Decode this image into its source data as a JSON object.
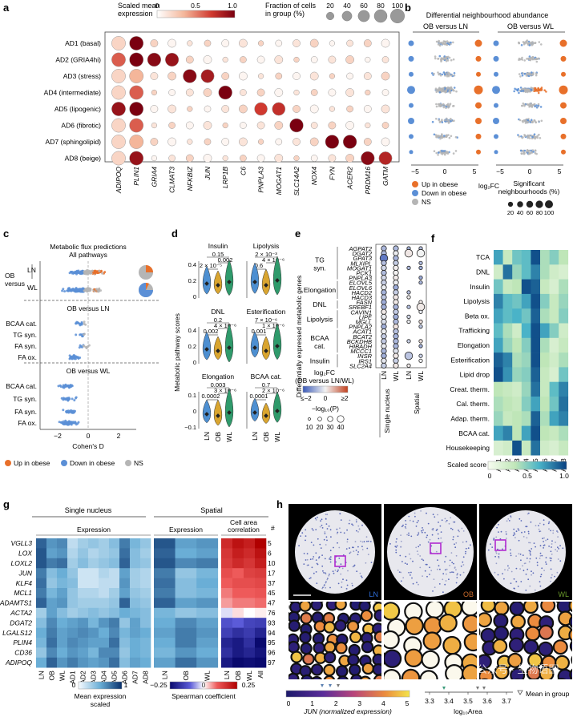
{
  "panel_a": {
    "letter": "a",
    "colorbar_title_1": "Scaled mean",
    "colorbar_title_2": "expression",
    "colorbar_ticks": [
      "0",
      "0.5",
      "1.0"
    ],
    "size_title_1": "Fraction of cells",
    "size_title_2": "in group (%)",
    "size_ticks": [
      "20",
      "40",
      "60",
      "80",
      "100"
    ],
    "colors": {
      "low": "#ffffff",
      "high": "#7a0010"
    }
  },
  "panel_b": {
    "letter": "b",
    "title": "Differential neighbourhood abundance",
    "left_title": "OB versus LN",
    "right_title": "OB versus WL",
    "ticks_left": [
      "−5",
      "0",
      "5"
    ],
    "ticks_right": [
      "−5",
      "0",
      "5"
    ],
    "xlabel": "log₂FC",
    "legend_up": "Up in obese",
    "legend_down": "Down in obese",
    "legend_ns": "NS",
    "size_title_1": "Significant",
    "size_title_2": "neighbourhoods (%)",
    "size_ticks": [
      "20",
      "40",
      "60",
      "80",
      "100"
    ],
    "colors": {
      "up": "#e8702a",
      "down": "#5b8fd6",
      "ns": "#b5b5b5"
    }
  },
  "panel_c": {
    "letter": "c",
    "title_1": "Metabolic flux predictions",
    "title_2": "All pathways",
    "group_top_1": "OB",
    "group_top_2": "versus",
    "row_ln": "LN",
    "row_wl": "WL",
    "section_ln": "OB versus LN",
    "section_wl": "OB versus WL",
    "rows": [
      "BCAA cat.",
      "TG syn.",
      "FA syn.",
      "FA ox."
    ],
    "ticks": [
      "−2",
      "0",
      "2"
    ],
    "xlabel": "Cohen's D",
    "legend_up": "Up in obese",
    "legend_down": "Down in obese",
    "legend_ns": "NS"
  },
  "panel_d": {
    "letter": "d",
    "ylabel": "Metabolic pathway scores",
    "groups": [
      "LN",
      "OB",
      "WL"
    ],
    "colors": {
      "LN": "#4d8fd1",
      "OB": "#d9a530",
      "WL": "#2f9a6b"
    },
    "yticks_1": [
      "0.4",
      "0.2",
      "0"
    ],
    "yticks_2": [
      "0.4",
      "0.2",
      "0"
    ],
    "yticks_3": [
      "0.1",
      "0",
      "−0.1"
    ],
    "violins": [
      {
        "title": "Insulin",
        "pvals": [
          "0.15",
          "2 × 10⁻⁵",
          "0.002"
        ]
      },
      {
        "title": "Lipolysis",
        "pvals": [
          "2 × 10⁻³",
          "0.6",
          "4 × 10⁻⁶"
        ]
      },
      {
        "title": "DNL",
        "pvals": [
          "0.2",
          "0.002",
          "4 × 10⁻⁶"
        ]
      },
      {
        "title": "Esterification",
        "pvals": [
          "7 × 10⁻⁶",
          "0.001",
          "1 × 10⁻⁶"
        ]
      },
      {
        "title": "Elongation",
        "pvals": [
          "0.003",
          "0.0002",
          "3 × 10⁻⁶"
        ]
      },
      {
        "title": "BCAA cat.",
        "pvals": [
          "0.7",
          "0.0001",
          "2 × 10⁻⁶"
        ]
      }
    ]
  },
  "panel_e": {
    "letter": "e",
    "ylabel": "Differentially expressed metabolic genes",
    "groups": [
      "TG syn.",
      "Elongation",
      "DNL",
      "Lipolysis",
      "BCAA cat.",
      "Insulin"
    ],
    "genes": [
      "AGPAT2",
      "DGAT2",
      "GPAT3",
      "MLXIPL",
      "MOGAT1",
      "PCK1",
      "PNPLA3",
      "ELOVL5",
      "ELOVL6",
      "HACD2",
      "HACD3",
      "FASN",
      "SREBF1",
      "CAVIN1",
      "LIPE",
      "MGLL",
      "PNPLA2",
      "ACAT1",
      "BCAT2",
      "BCKDHB",
      "HIBADH",
      "MCCC1",
      "INSR",
      "IRS1",
      "SLC2A4"
    ],
    "cols": [
      "LN",
      "WL",
      "LN",
      "WL"
    ],
    "col_group_1": "Single nucleus",
    "col_group_2": "Spatial",
    "legend_title_1": "log₂FC",
    "legend_title_2": "(OB versus LN/WL)",
    "legend_ticks": [
      "≤−2",
      "0",
      "≥2"
    ],
    "size_title": "−log₁₀(P)",
    "size_ticks": [
      "10",
      "20",
      "30",
      "40"
    ]
  },
  "panel_f": {
    "letter": "f",
    "rows": [
      "TCA",
      "DNL",
      "Insulin",
      "Lipolysis",
      "Beta ox.",
      "Trafficking",
      "Elongation",
      "Esterification",
      "Lipid drop",
      "Creat. therm.",
      "Cal. therm.",
      "Adap. therm.",
      "BCAA cat.",
      "Housekeeping"
    ],
    "cols": [
      "AD1",
      "AD2",
      "AD3",
      "AD4",
      "AD5",
      "AD6",
      "AD7",
      "AD8"
    ],
    "colorbar_title": "Scaled score",
    "colorbar_ticks": [
      "0",
      "0.5",
      "1.0"
    ],
    "values": [
      [
        0.7,
        0.3,
        0.55,
        0.6,
        0.95,
        0.4,
        0.5,
        0.35
      ],
      [
        0.25,
        0.85,
        0.45,
        0.6,
        0.8,
        0.4,
        0.25,
        0.2
      ],
      [
        0.55,
        0.3,
        0.35,
        0.95,
        0.9,
        0.3,
        0.2,
        0.4
      ],
      [
        0.8,
        0.6,
        0.55,
        0.7,
        0.95,
        0.5,
        0.3,
        0.45
      ],
      [
        0.7,
        0.6,
        0.65,
        0.55,
        0.9,
        0.4,
        0.3,
        0.5
      ],
      [
        0.6,
        0.4,
        0.25,
        0.65,
        0.95,
        0.7,
        0.5,
        0.25
      ],
      [
        0.7,
        0.45,
        0.35,
        0.5,
        0.95,
        0.4,
        0.2,
        0.3
      ],
      [
        0.9,
        0.8,
        0.4,
        0.45,
        0.95,
        0.35,
        0.25,
        0.4
      ],
      [
        0.95,
        0.75,
        0.45,
        0.5,
        0.9,
        0.3,
        0.2,
        0.55
      ],
      [
        0.35,
        0.3,
        0.25,
        0.45,
        0.85,
        0.3,
        0.6,
        0.8
      ],
      [
        0.4,
        0.35,
        0.3,
        0.5,
        0.7,
        0.35,
        0.55,
        0.85
      ],
      [
        0.45,
        0.3,
        0.35,
        0.4,
        0.9,
        0.4,
        0.7,
        0.8
      ],
      [
        0.7,
        0.8,
        0.35,
        0.7,
        0.95,
        0.35,
        0.3,
        0.4
      ],
      [
        0.2,
        0.25,
        0.95,
        0.3,
        0.85,
        0.25,
        0.2,
        0.3
      ]
    ]
  },
  "panel_g": {
    "letter": "g",
    "group_single": "Single nucleus",
    "group_spatial": "Spatial",
    "sub_expression": "Expression",
    "sub_expression_2": "Expression",
    "sub_corr_1": "Cell area",
    "sub_corr_2": "correlation",
    "hash_label": "#",
    "genes": [
      "VGLL3",
      "LOX",
      "LOXL2",
      "JUN",
      "KLF4",
      "MCL1",
      "ADAMTS1",
      "ACTA2",
      "DGAT2",
      "LGALS12",
      "PLIN4",
      "CD36",
      "ADIPOQ"
    ],
    "counts": [
      "5",
      "6",
      "10",
      "17",
      "37",
      "45",
      "47",
      "76",
      "93",
      "94",
      "95",
      "96",
      "97"
    ],
    "cols_single": [
      "LN",
      "OB",
      "WL",
      "AD1",
      "AD2",
      "AD3",
      "AD4",
      "AD5",
      "AD6",
      "AD7",
      "AD8"
    ],
    "cols_spatial": [
      "LN",
      "OB",
      "WL",
      "All"
    ],
    "legend_ticks_1": [
      "0",
      "1"
    ],
    "legend_title_1a": "Mean expression",
    "legend_title_1b": "scaled",
    "legend_ticks_2": [
      "−0.25",
      "0",
      "0.25"
    ],
    "legend_title_2": "Spearman coefficient",
    "single_values": [
      [
        0.8,
        0.6,
        0.65,
        0.2,
        0.3,
        0.35,
        0.3,
        0.4,
        0.7,
        0.45,
        0.35
      ],
      [
        0.85,
        0.55,
        0.6,
        0.25,
        0.35,
        0.25,
        0.3,
        0.35,
        0.75,
        0.4,
        0.3
      ],
      [
        0.85,
        0.7,
        0.75,
        0.3,
        0.4,
        0.3,
        0.35,
        0.4,
        0.8,
        0.4,
        0.35
      ],
      [
        0.7,
        0.4,
        0.5,
        0.35,
        0.15,
        0.15,
        0.25,
        0.2,
        0.55,
        0.3,
        0.25
      ],
      [
        0.75,
        0.35,
        0.45,
        0.4,
        0.15,
        0.15,
        0.2,
        0.2,
        0.6,
        0.3,
        0.25
      ],
      [
        0.7,
        0.45,
        0.55,
        0.35,
        0.25,
        0.25,
        0.2,
        0.3,
        0.55,
        0.35,
        0.3
      ],
      [
        0.8,
        0.55,
        0.6,
        0.35,
        0.3,
        0.3,
        0.3,
        0.35,
        0.8,
        0.4,
        0.35
      ],
      [
        0.3,
        0.55,
        0.4,
        0.3,
        0.35,
        0.4,
        0.35,
        0.4,
        0.5,
        0.45,
        0.4
      ],
      [
        0.4,
        0.65,
        0.5,
        0.55,
        0.6,
        0.45,
        0.6,
        0.7,
        0.35,
        0.55,
        0.4
      ],
      [
        0.5,
        0.7,
        0.55,
        0.6,
        0.65,
        0.6,
        0.5,
        0.65,
        0.45,
        0.55,
        0.5
      ],
      [
        0.45,
        0.75,
        0.55,
        0.65,
        0.6,
        0.55,
        0.55,
        0.75,
        0.4,
        0.5,
        0.45
      ],
      [
        0.35,
        0.65,
        0.5,
        0.6,
        0.55,
        0.45,
        0.65,
        0.65,
        0.35,
        0.5,
        0.45
      ],
      [
        0.5,
        0.8,
        0.6,
        0.7,
        0.6,
        0.55,
        0.6,
        0.75,
        0.4,
        0.55,
        0.5
      ]
    ],
    "spatial_values": [
      [
        0.85,
        0.55,
        0.6
      ],
      [
        0.8,
        0.5,
        0.55
      ],
      [
        0.85,
        0.65,
        0.7
      ],
      [
        0.7,
        0.35,
        0.45
      ],
      [
        0.75,
        0.4,
        0.5
      ],
      [
        0.7,
        0.4,
        0.45
      ],
      [
        0.8,
        0.55,
        0.6
      ],
      [
        0.45,
        0.35,
        0.4
      ],
      [
        0.5,
        0.65,
        0.55
      ],
      [
        0.55,
        0.7,
        0.6
      ],
      [
        0.5,
        0.7,
        0.55
      ],
      [
        0.45,
        0.6,
        0.5
      ],
      [
        0.55,
        0.75,
        0.6
      ]
    ],
    "corr_values": [
      [
        0.18,
        0.22,
        0.2,
        0.25
      ],
      [
        0.16,
        0.2,
        0.18,
        0.22
      ],
      [
        0.15,
        0.18,
        0.16,
        0.2
      ],
      [
        0.12,
        0.1,
        0.14,
        0.15
      ],
      [
        0.1,
        0.12,
        0.12,
        0.13
      ],
      [
        0.08,
        0.1,
        0.1,
        0.11
      ],
      [
        0.06,
        0.08,
        0.08,
        0.09
      ],
      [
        -0.02,
        0.02,
        0.0,
        0.01
      ],
      [
        -0.12,
        -0.1,
        -0.14,
        -0.15
      ],
      [
        -0.15,
        -0.18,
        -0.16,
        -0.2
      ],
      [
        -0.2,
        -0.22,
        -0.18,
        -0.25
      ],
      [
        -0.18,
        -0.22,
        -0.2,
        -0.23
      ],
      [
        -0.22,
        -0.25,
        -0.24,
        -0.25
      ]
    ]
  },
  "panel_h": {
    "letter": "h",
    "tiles": [
      "LN",
      "OB",
      "WL"
    ],
    "tile_colors": {
      "LN": "#2f6fdc",
      "OB": "#c8692a",
      "WL": "#6a9a2a"
    },
    "colorbar_ticks": [
      "0",
      "1",
      "2",
      "3",
      "4",
      "5"
    ],
    "colorbar_label": "JUN (normalized expression)",
    "area_ticks": [
      "3.3",
      "3.4",
      "3.5",
      "3.6",
      "3.7"
    ],
    "area_label": "log₁₀Area",
    "mean_label": "Mean in group",
    "watermark": "公众号 · 生物语图"
  }
}
